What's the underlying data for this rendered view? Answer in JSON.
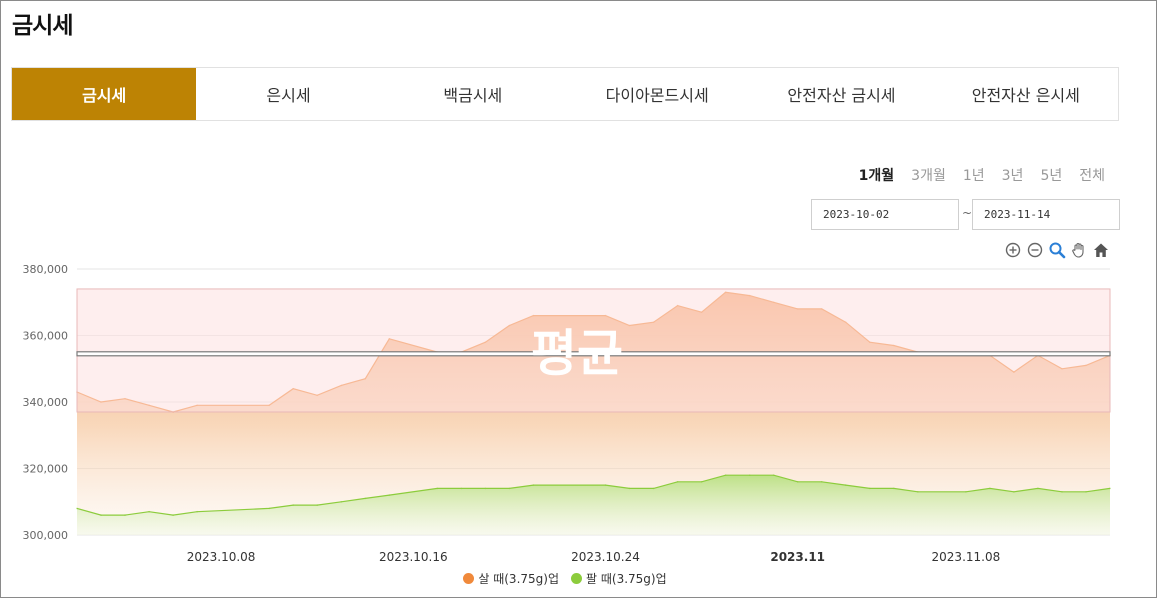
{
  "page": {
    "title": "금시세"
  },
  "tabs": [
    {
      "label": "금시세",
      "active": true
    },
    {
      "label": "은시세",
      "active": false
    },
    {
      "label": "백금시세",
      "active": false
    },
    {
      "label": "다이아몬드시세",
      "active": false
    },
    {
      "label": "안전자산 금시세",
      "active": false
    },
    {
      "label": "안전자산 은시세",
      "active": false
    }
  ],
  "periods": [
    {
      "label": "1개월",
      "active": true
    },
    {
      "label": "3개월",
      "active": false
    },
    {
      "label": "1년",
      "active": false
    },
    {
      "label": "3년",
      "active": false
    },
    {
      "label": "5년",
      "active": false
    },
    {
      "label": "전체",
      "active": false
    }
  ],
  "date_range": {
    "start": "2023-10-02",
    "separator": "~",
    "end": "2023-11-14"
  },
  "toolbar": {
    "icons": [
      "zoom-in-icon",
      "zoom-out-icon",
      "magnify-icon",
      "pan-hand-icon",
      "home-icon"
    ]
  },
  "colors": {
    "accent": "#bd8304",
    "buy": "#f0893b",
    "sell": "#8ccc3c",
    "band": "#fde0e0",
    "average_line": "#7a7a7a"
  },
  "chart_data": {
    "type": "area",
    "title": "",
    "xlabel": "",
    "ylabel": "",
    "x_range": [
      "2023-10-02",
      "2023-11-14"
    ],
    "ylim": [
      300000,
      380000
    ],
    "y_ticks": [
      300000,
      320000,
      340000,
      360000,
      380000
    ],
    "y_tick_labels": [
      "300,000",
      "320,000",
      "340,000",
      "360,000",
      "380,000"
    ],
    "x_ticks": [
      {
        "x": "2023-10-08",
        "label": "2023.10.08",
        "bold": false
      },
      {
        "x": "2023-10-16",
        "label": "2023.10.16",
        "bold": false
      },
      {
        "x": "2023-10-24",
        "label": "2023.10.24",
        "bold": false
      },
      {
        "x": "2023-11-01",
        "label": "2023.11",
        "bold": true
      },
      {
        "x": "2023-11-08",
        "label": "2023.11.08",
        "bold": false
      }
    ],
    "grid": true,
    "legend_position": "bottom",
    "band": {
      "label": "평균",
      "from": 337000,
      "to": 374000
    },
    "average_line": 354500,
    "series": [
      {
        "name": "살 때(3.75g)업",
        "color": "#f0893b",
        "points": [
          [
            "2023-10-02",
            343000
          ],
          [
            "2023-10-03",
            340000
          ],
          [
            "2023-10-04",
            341000
          ],
          [
            "2023-10-05",
            339000
          ],
          [
            "2023-10-06",
            337000
          ],
          [
            "2023-10-07",
            339000
          ],
          [
            "2023-10-10",
            339000
          ],
          [
            "2023-10-11",
            344000
          ],
          [
            "2023-10-12",
            342000
          ],
          [
            "2023-10-13",
            345000
          ],
          [
            "2023-10-14",
            347000
          ],
          [
            "2023-10-15",
            359000
          ],
          [
            "2023-10-17",
            355000
          ],
          [
            "2023-10-18",
            355000
          ],
          [
            "2023-10-19",
            358000
          ],
          [
            "2023-10-20",
            363000
          ],
          [
            "2023-10-21",
            366000
          ],
          [
            "2023-10-24",
            366000
          ],
          [
            "2023-10-25",
            363000
          ],
          [
            "2023-10-26",
            364000
          ],
          [
            "2023-10-27",
            369000
          ],
          [
            "2023-10-28",
            367000
          ],
          [
            "2023-10-29",
            373000
          ],
          [
            "2023-10-30",
            372000
          ],
          [
            "2023-10-31",
            370000
          ],
          [
            "2023-11-01",
            368000
          ],
          [
            "2023-11-02",
            368000
          ],
          [
            "2023-11-03",
            364000
          ],
          [
            "2023-11-04",
            358000
          ],
          [
            "2023-11-05",
            357000
          ],
          [
            "2023-11-06",
            355000
          ],
          [
            "2023-11-08",
            355000
          ],
          [
            "2023-11-09",
            354000
          ],
          [
            "2023-11-10",
            349000
          ],
          [
            "2023-11-11",
            354000
          ],
          [
            "2023-11-12",
            350000
          ],
          [
            "2023-11-13",
            351000
          ],
          [
            "2023-11-14",
            354000
          ]
        ]
      },
      {
        "name": "팔 때(3.75g)업",
        "color": "#8ccc3c",
        "points": [
          [
            "2023-10-02",
            308000
          ],
          [
            "2023-10-03",
            306000
          ],
          [
            "2023-10-04",
            306000
          ],
          [
            "2023-10-05",
            307000
          ],
          [
            "2023-10-06",
            306000
          ],
          [
            "2023-10-07",
            307000
          ],
          [
            "2023-10-10",
            308000
          ],
          [
            "2023-10-11",
            309000
          ],
          [
            "2023-10-12",
            309000
          ],
          [
            "2023-10-13",
            310000
          ],
          [
            "2023-10-14",
            311000
          ],
          [
            "2023-10-15",
            312000
          ],
          [
            "2023-10-17",
            314000
          ],
          [
            "2023-10-18",
            314000
          ],
          [
            "2023-10-19",
            314000
          ],
          [
            "2023-10-20",
            314000
          ],
          [
            "2023-10-21",
            315000
          ],
          [
            "2023-10-24",
            315000
          ],
          [
            "2023-10-25",
            314000
          ],
          [
            "2023-10-26",
            314000
          ],
          [
            "2023-10-27",
            316000
          ],
          [
            "2023-10-28",
            316000
          ],
          [
            "2023-10-29",
            318000
          ],
          [
            "2023-10-30",
            318000
          ],
          [
            "2023-10-31",
            318000
          ],
          [
            "2023-11-01",
            316000
          ],
          [
            "2023-11-02",
            316000
          ],
          [
            "2023-11-03",
            315000
          ],
          [
            "2023-11-04",
            314000
          ],
          [
            "2023-11-05",
            314000
          ],
          [
            "2023-11-06",
            313000
          ],
          [
            "2023-11-08",
            313000
          ],
          [
            "2023-11-09",
            314000
          ],
          [
            "2023-11-10",
            313000
          ],
          [
            "2023-11-11",
            314000
          ],
          [
            "2023-11-12",
            313000
          ],
          [
            "2023-11-13",
            313000
          ],
          [
            "2023-11-14",
            314000
          ]
        ]
      }
    ]
  }
}
